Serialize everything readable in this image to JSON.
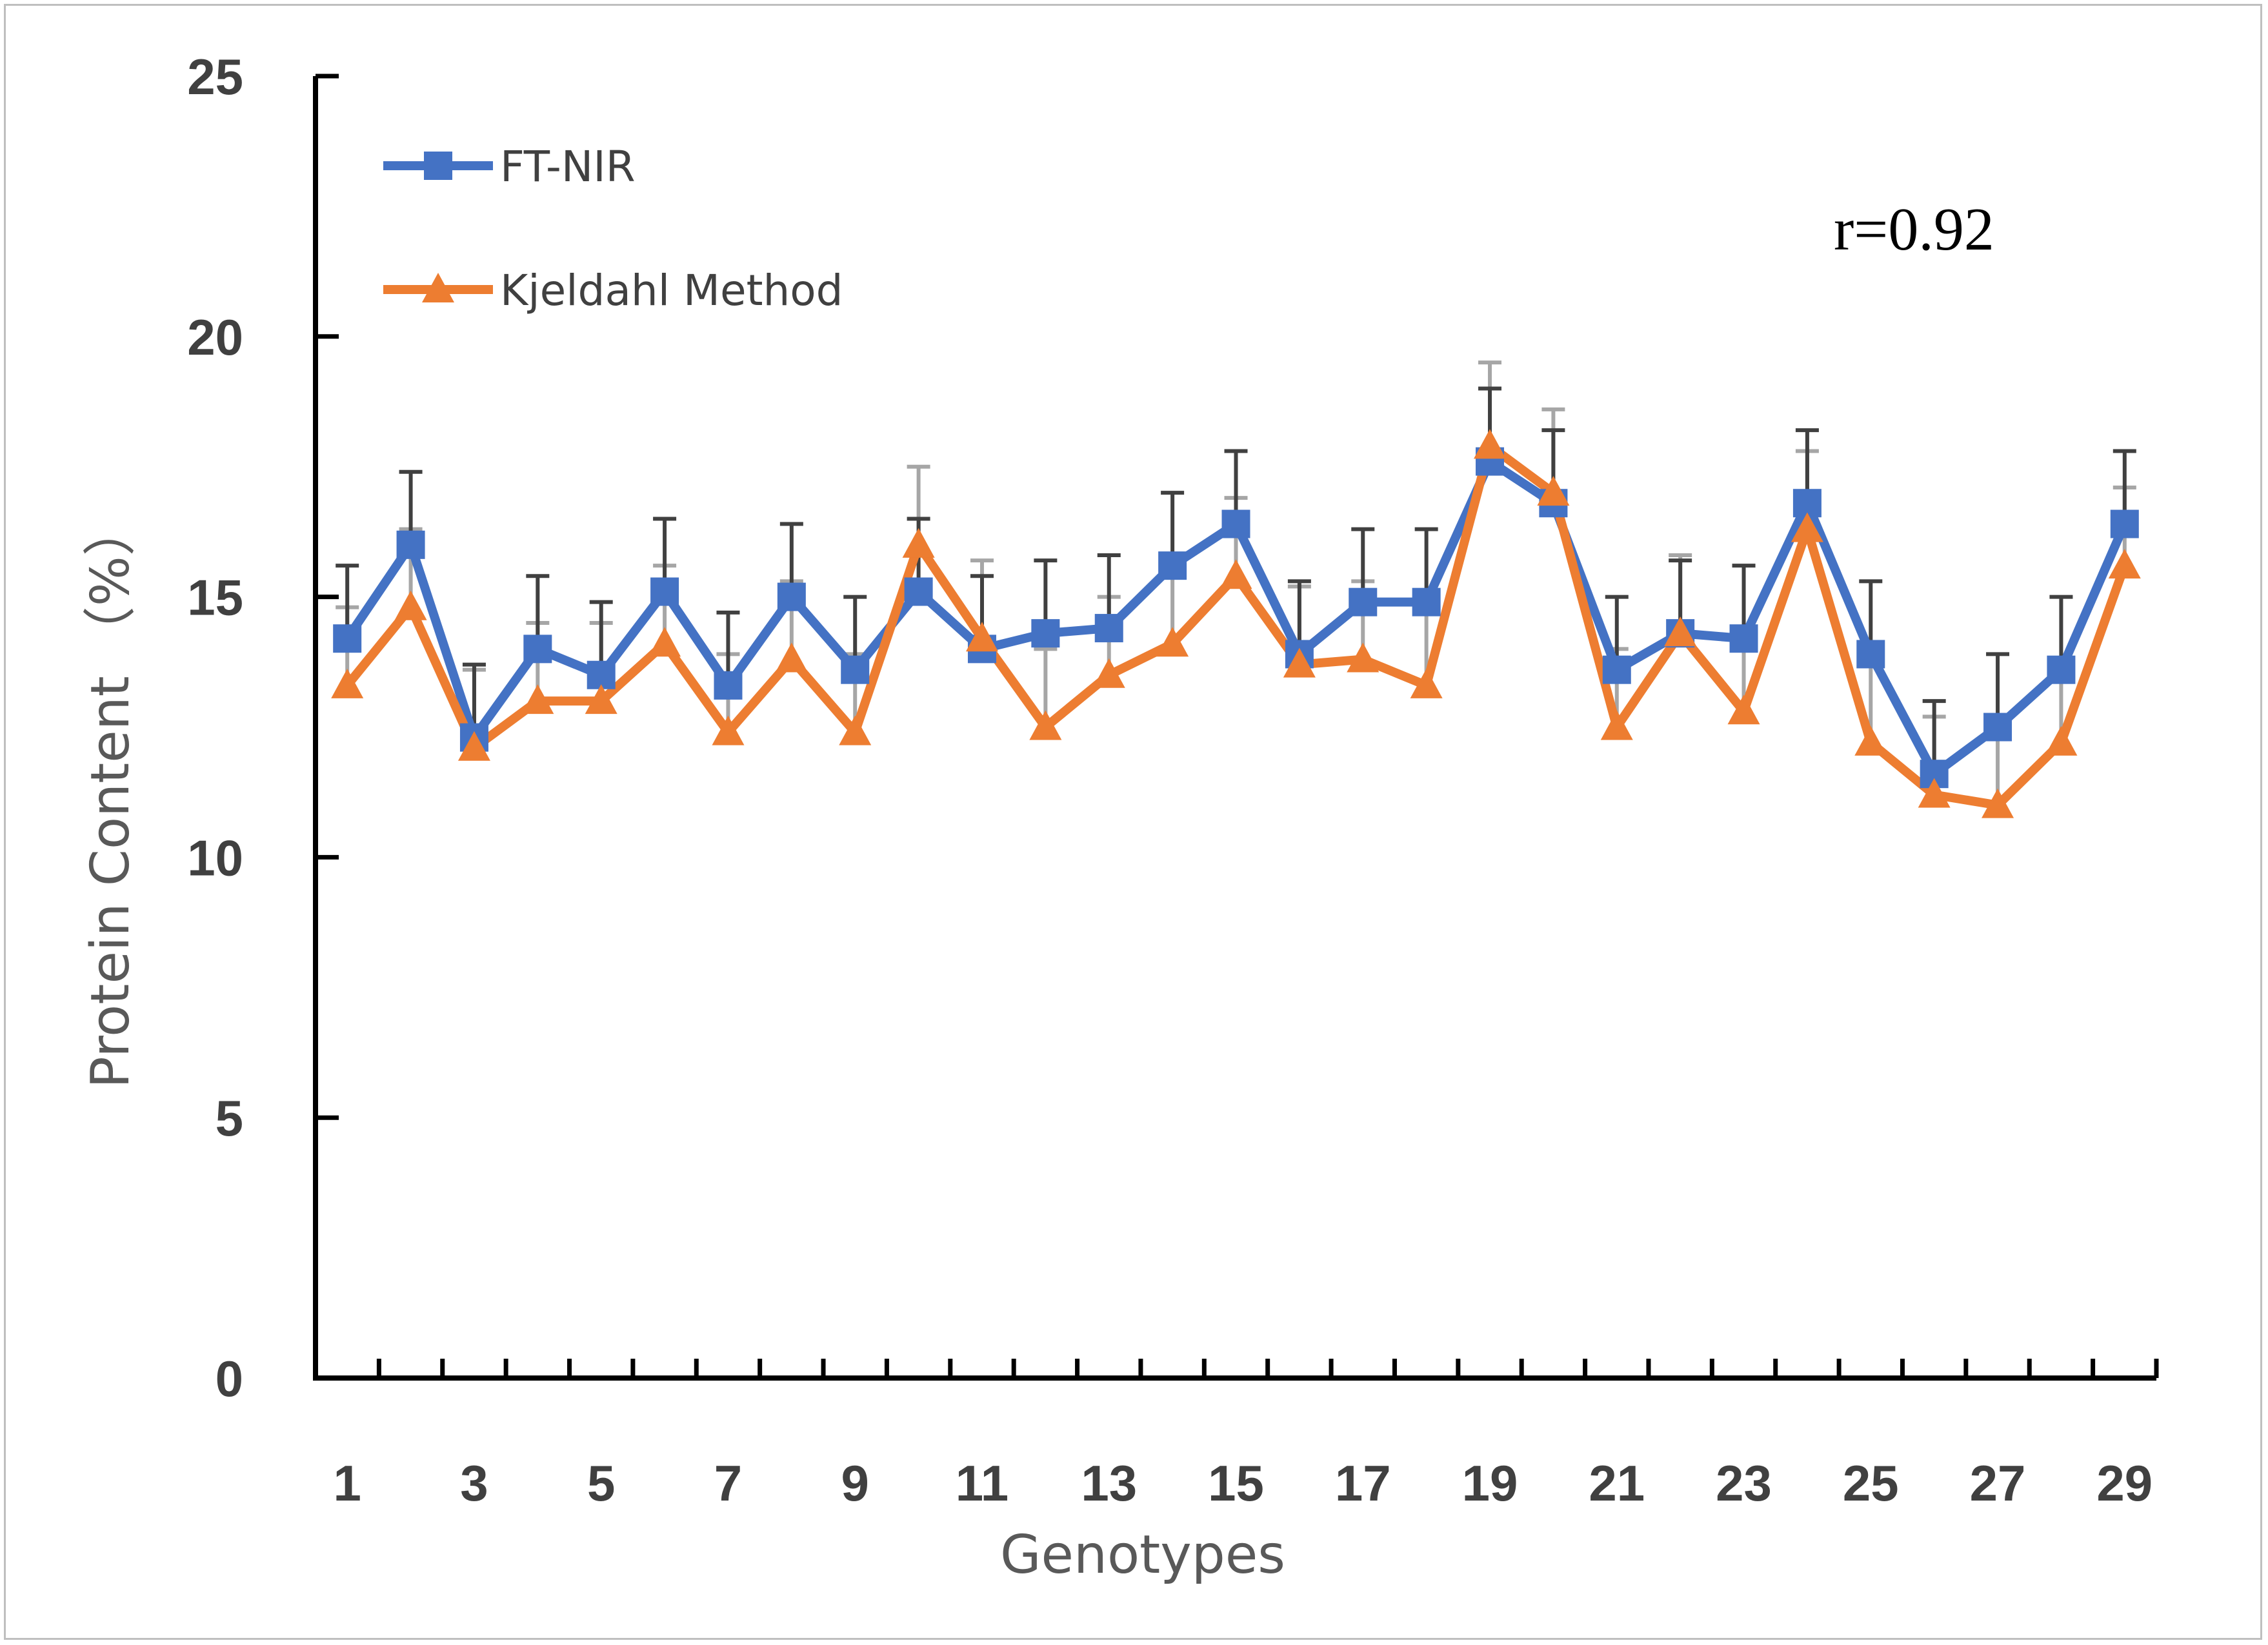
{
  "colors": {
    "ftnir": "#4472C4",
    "kjeldahl": "#ED7D31",
    "ftnir_err": "#404040",
    "kjeldahl_err": "#A6A6A6",
    "axis": "#000000"
  },
  "chart_data": {
    "type": "line",
    "xlabel": "Genotypes",
    "ylabel": "Protein Content （%）",
    "ylim": [
      0,
      25
    ],
    "y_ticks": [
      "0",
      "5",
      "10",
      "15",
      "20",
      "25"
    ],
    "x": [
      1,
      2,
      3,
      4,
      5,
      6,
      7,
      8,
      9,
      10,
      11,
      12,
      13,
      14,
      15,
      16,
      17,
      18,
      19,
      20,
      21,
      22,
      23,
      24,
      25,
      26,
      27,
      28,
      29
    ],
    "x_tick_labels": [
      "1",
      "3",
      "5",
      "7",
      "9",
      "11",
      "13",
      "15",
      "17",
      "19",
      "21",
      "23",
      "25",
      "27",
      "29"
    ],
    "annotation": "r=0.92",
    "grid": false,
    "legend_position": "top-left",
    "series": [
      {
        "name": "FT-NIR",
        "marker": "square",
        "color_key": "ftnir",
        "values": [
          14.2,
          16.0,
          12.3,
          14.0,
          13.5,
          15.1,
          13.3,
          15.0,
          13.6,
          15.1,
          14.0,
          14.3,
          14.4,
          15.6,
          16.4,
          13.9,
          14.9,
          14.9,
          17.6,
          16.8,
          13.6,
          14.3,
          14.2,
          16.8,
          13.9,
          11.6,
          12.5,
          13.6,
          16.4
        ],
        "errors": [
          1.4,
          1.4,
          1.4,
          1.4,
          1.4,
          1.4,
          1.4,
          1.4,
          1.4,
          1.4,
          1.4,
          1.4,
          1.4,
          1.4,
          1.4,
          1.4,
          1.4,
          1.4,
          1.4,
          1.4,
          1.4,
          1.4,
          1.4,
          1.4,
          1.4,
          1.4,
          1.4,
          1.4,
          1.4
        ]
      },
      {
        "name": "Kjeldahl Method",
        "marker": "triangle",
        "color_key": "kjeldahl",
        "values": [
          13.3,
          14.8,
          12.1,
          13.0,
          13.0,
          14.1,
          12.4,
          13.8,
          12.4,
          16.0,
          14.2,
          12.5,
          13.5,
          14.1,
          15.4,
          13.7,
          13.8,
          13.3,
          17.9,
          17.0,
          12.5,
          14.3,
          12.8,
          16.3,
          12.2,
          11.2,
          11.0,
          12.2,
          15.6
        ],
        "errors": [
          1.5,
          1.5,
          1.5,
          1.5,
          1.5,
          1.5,
          1.5,
          1.5,
          1.5,
          1.5,
          1.5,
          1.5,
          1.5,
          1.5,
          1.5,
          1.5,
          1.5,
          1.5,
          1.6,
          1.6,
          1.5,
          1.5,
          1.5,
          1.5,
          1.5,
          1.5,
          1.5,
          1.5,
          1.5
        ]
      }
    ]
  }
}
